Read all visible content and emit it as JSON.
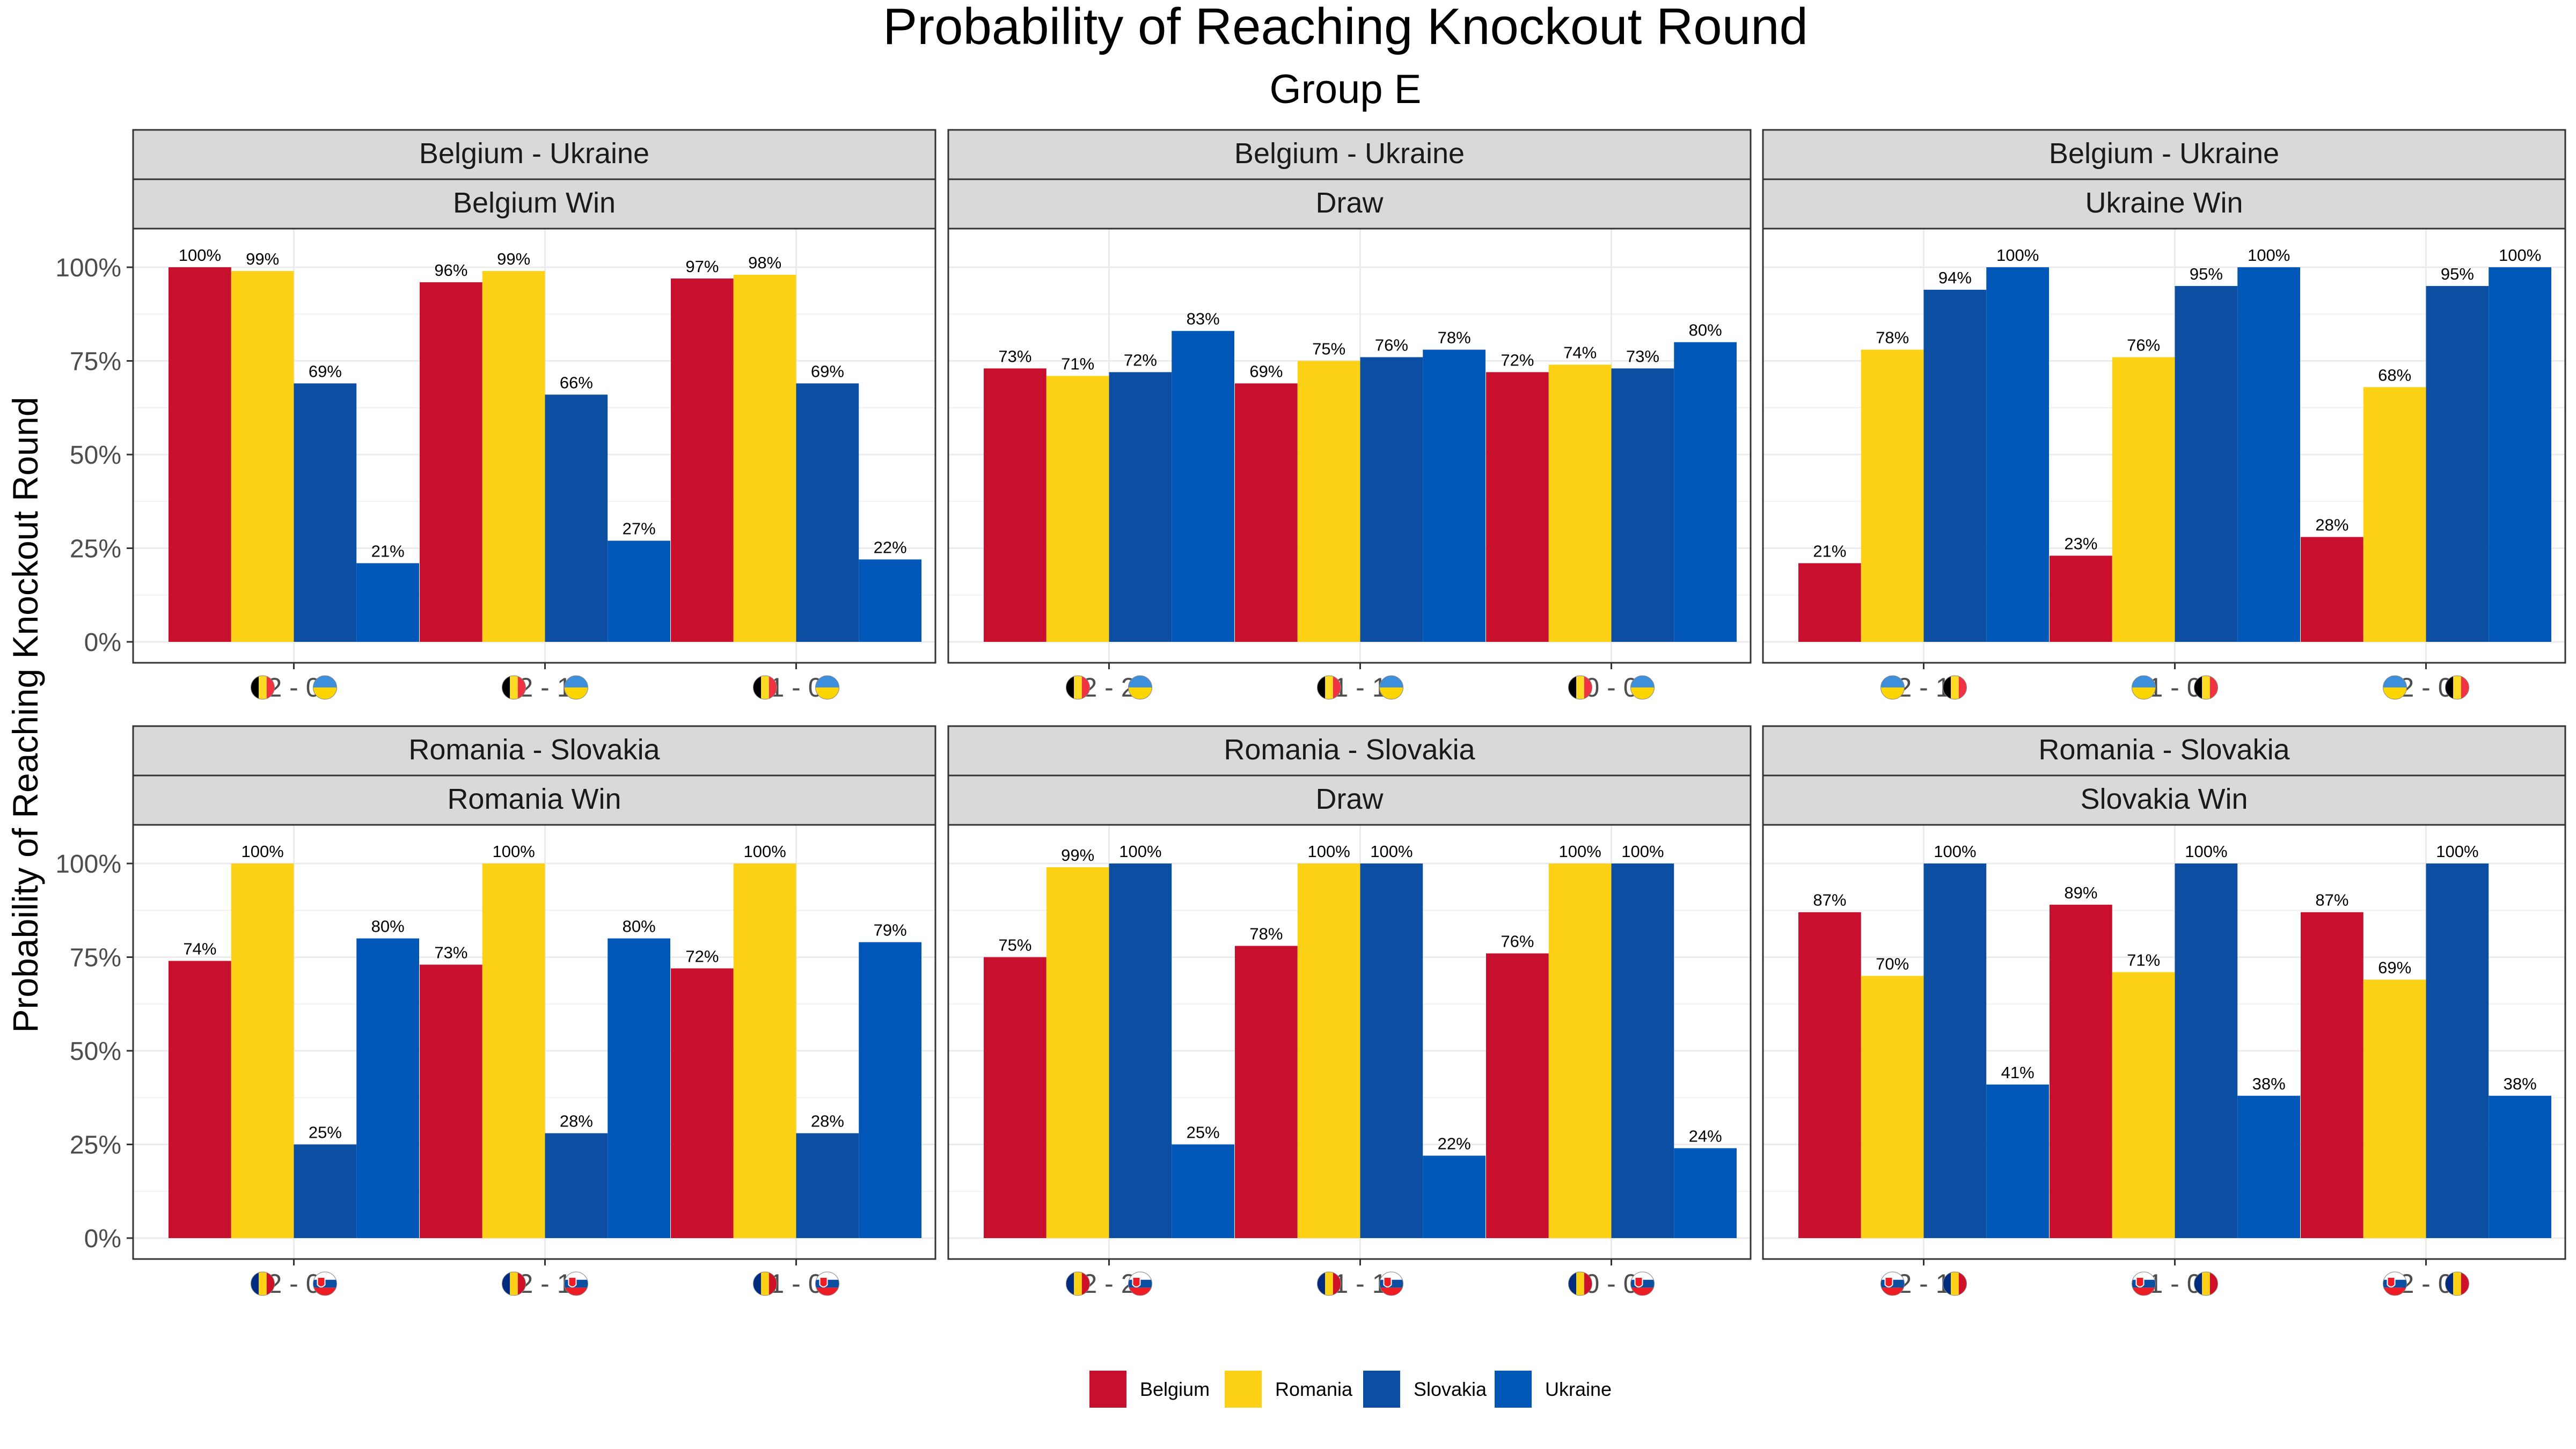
{
  "chart_data": {
    "type": "bar",
    "title": "Probability of Reaching Knockout Round",
    "subtitle": "Group E",
    "ylabel": "Probability of Reaching Knockout Round",
    "xlabel": "",
    "ylim": [
      0,
      1.1
    ],
    "y_ticks": [
      0,
      0.25,
      0.5,
      0.75,
      1.0
    ],
    "y_tick_labels": [
      "0%",
      "25%",
      "50%",
      "75%",
      "100%"
    ],
    "grid": true,
    "legend_position": "bottom",
    "series_names": [
      "Belgium",
      "Romania",
      "Slovakia",
      "Ukraine"
    ],
    "colors": {
      "Belgium": "#C8102E",
      "Romania": "#FCD116",
      "Slovakia": "#0B4EA2",
      "Ukraine": "#0057B8"
    },
    "flag_icons": {
      "Belgium": "belgium-flag-icon",
      "Ukraine": "ukraine-flag-icon",
      "Romania": "romania-flag-icon",
      "Slovakia": "slovakia-flag-icon"
    },
    "panels": [
      {
        "match": "Belgium - Ukraine",
        "outcome": "Belgium Win",
        "categories": [
          {
            "label": "2 - 0",
            "left_flag": "Belgium",
            "right_flag": "Ukraine"
          },
          {
            "label": "2 - 1",
            "left_flag": "Belgium",
            "right_flag": "Ukraine"
          },
          {
            "label": "1 - 0",
            "left_flag": "Belgium",
            "right_flag": "Ukraine"
          }
        ],
        "series": [
          {
            "name": "Belgium",
            "values": [
              1.0,
              0.96,
              0.97
            ],
            "labels": [
              "100%",
              "96%",
              "97%"
            ]
          },
          {
            "name": "Romania",
            "values": [
              0.99,
              0.99,
              0.98
            ],
            "labels": [
              "99%",
              "99%",
              "98%"
            ]
          },
          {
            "name": "Slovakia",
            "values": [
              0.69,
              0.66,
              0.69
            ],
            "labels": [
              "69%",
              "66%",
              "69%"
            ]
          },
          {
            "name": "Ukraine",
            "values": [
              0.21,
              0.27,
              0.22
            ],
            "labels": [
              "21%",
              "27%",
              "22%"
            ]
          }
        ]
      },
      {
        "match": "Belgium - Ukraine",
        "outcome": "Draw",
        "categories": [
          {
            "label": "2 - 2",
            "left_flag": "Belgium",
            "right_flag": "Ukraine"
          },
          {
            "label": "1 - 1",
            "left_flag": "Belgium",
            "right_flag": "Ukraine"
          },
          {
            "label": "0 - 0",
            "left_flag": "Belgium",
            "right_flag": "Ukraine"
          }
        ],
        "series": [
          {
            "name": "Belgium",
            "values": [
              0.73,
              0.69,
              0.72
            ],
            "labels": [
              "73%",
              "69%",
              "72%"
            ]
          },
          {
            "name": "Romania",
            "values": [
              0.71,
              0.75,
              0.74
            ],
            "labels": [
              "71%",
              "75%",
              "74%"
            ]
          },
          {
            "name": "Slovakia",
            "values": [
              0.72,
              0.76,
              0.73
            ],
            "labels": [
              "72%",
              "76%",
              "73%"
            ]
          },
          {
            "name": "Ukraine",
            "values": [
              0.83,
              0.78,
              0.8
            ],
            "labels": [
              "83%",
              "78%",
              "80%"
            ]
          }
        ]
      },
      {
        "match": "Belgium - Ukraine",
        "outcome": "Ukraine Win",
        "categories": [
          {
            "label": "2 - 1",
            "left_flag": "Ukraine",
            "right_flag": "Belgium"
          },
          {
            "label": "1 - 0",
            "left_flag": "Ukraine",
            "right_flag": "Belgium"
          },
          {
            "label": "2 - 0",
            "left_flag": "Ukraine",
            "right_flag": "Belgium"
          }
        ],
        "series": [
          {
            "name": "Belgium",
            "values": [
              0.21,
              0.23,
              0.28
            ],
            "labels": [
              "21%",
              "23%",
              "28%"
            ]
          },
          {
            "name": "Romania",
            "values": [
              0.78,
              0.76,
              0.68
            ],
            "labels": [
              "78%",
              "76%",
              "68%"
            ]
          },
          {
            "name": "Slovakia",
            "values": [
              0.94,
              0.95,
              0.95
            ],
            "labels": [
              "94%",
              "95%",
              "95%"
            ]
          },
          {
            "name": "Ukraine",
            "values": [
              1.0,
              1.0,
              1.0
            ],
            "labels": [
              "100%",
              "100%",
              "100%"
            ]
          }
        ]
      },
      {
        "match": "Romania - Slovakia",
        "outcome": "Romania Win",
        "categories": [
          {
            "label": "2 - 0",
            "left_flag": "Romania",
            "right_flag": "Slovakia"
          },
          {
            "label": "2 - 1",
            "left_flag": "Romania",
            "right_flag": "Slovakia"
          },
          {
            "label": "1 - 0",
            "left_flag": "Romania",
            "right_flag": "Slovakia"
          }
        ],
        "series": [
          {
            "name": "Belgium",
            "values": [
              0.74,
              0.73,
              0.72
            ],
            "labels": [
              "74%",
              "73%",
              "72%"
            ]
          },
          {
            "name": "Romania",
            "values": [
              1.0,
              1.0,
              1.0
            ],
            "labels": [
              "100%",
              "100%",
              "100%"
            ]
          },
          {
            "name": "Slovakia",
            "values": [
              0.25,
              0.28,
              0.28
            ],
            "labels": [
              "25%",
              "28%",
              "28%"
            ]
          },
          {
            "name": "Ukraine",
            "values": [
              0.8,
              0.8,
              0.79
            ],
            "labels": [
              "80%",
              "80%",
              "79%"
            ]
          }
        ]
      },
      {
        "match": "Romania - Slovakia",
        "outcome": "Draw",
        "categories": [
          {
            "label": "2 - 2",
            "left_flag": "Romania",
            "right_flag": "Slovakia"
          },
          {
            "label": "1 - 1",
            "left_flag": "Romania",
            "right_flag": "Slovakia"
          },
          {
            "label": "0 - 0",
            "left_flag": "Romania",
            "right_flag": "Slovakia"
          }
        ],
        "series": [
          {
            "name": "Belgium",
            "values": [
              0.75,
              0.78,
              0.76
            ],
            "labels": [
              "75%",
              "78%",
              "76%"
            ]
          },
          {
            "name": "Romania",
            "values": [
              0.99,
              1.0,
              1.0
            ],
            "labels": [
              "99%",
              "100%",
              "100%"
            ]
          },
          {
            "name": "Slovakia",
            "values": [
              1.0,
              1.0,
              1.0
            ],
            "labels": [
              "100%",
              "100%",
              "100%"
            ]
          },
          {
            "name": "Ukraine",
            "values": [
              0.25,
              0.22,
              0.24
            ],
            "labels": [
              "25%",
              "22%",
              "24%"
            ]
          }
        ]
      },
      {
        "match": "Romania - Slovakia",
        "outcome": "Slovakia Win",
        "categories": [
          {
            "label": "2 - 1",
            "left_flag": "Slovakia",
            "right_flag": "Romania"
          },
          {
            "label": "1 - 0",
            "left_flag": "Slovakia",
            "right_flag": "Romania"
          },
          {
            "label": "2 - 0",
            "left_flag": "Slovakia",
            "right_flag": "Romania"
          }
        ],
        "series": [
          {
            "name": "Belgium",
            "values": [
              0.87,
              0.89,
              0.87
            ],
            "labels": [
              "87%",
              "89%",
              "87%"
            ]
          },
          {
            "name": "Romania",
            "values": [
              0.7,
              0.71,
              0.69
            ],
            "labels": [
              "70%",
              "71%",
              "69%"
            ]
          },
          {
            "name": "Slovakia",
            "values": [
              1.0,
              1.0,
              1.0
            ],
            "labels": [
              "100%",
              "100%",
              "100%"
            ]
          },
          {
            "name": "Ukraine",
            "values": [
              0.41,
              0.38,
              0.38
            ],
            "labels": [
              "41%",
              "38%",
              "38%"
            ]
          }
        ]
      }
    ]
  }
}
